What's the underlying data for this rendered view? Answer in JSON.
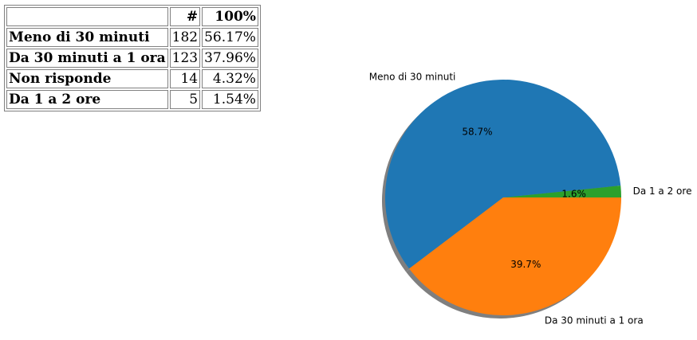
{
  "table": {
    "header": [
      "",
      "#",
      "100%"
    ],
    "rows": [
      {
        "label": "Meno di 30 minuti",
        "count": "182",
        "pct": "56.17%"
      },
      {
        "label": "Da 30 minuti a 1 ora",
        "count": "123",
        "pct": "37.96%"
      },
      {
        "label": "Non risponde",
        "count": "14",
        "pct": "4.32%"
      },
      {
        "label": "Da 1 a 2 ore",
        "count": "5",
        "pct": "1.54%"
      }
    ]
  },
  "chart_data": {
    "type": "pie",
    "title": "",
    "shadow": true,
    "start_angle_deg": 0,
    "direction": "counterclockwise",
    "categories": [
      "Da 1 a 2 ore",
      "Meno di 30 minuti",
      "Da 30 minuti a 1 ora"
    ],
    "values": [
      5,
      182,
      123
    ],
    "labels_pct": [
      "1.6%",
      "58.7%",
      "39.7%"
    ],
    "colors": [
      "#2ca02c",
      "#1f77b4",
      "#ff7f0e"
    ]
  }
}
